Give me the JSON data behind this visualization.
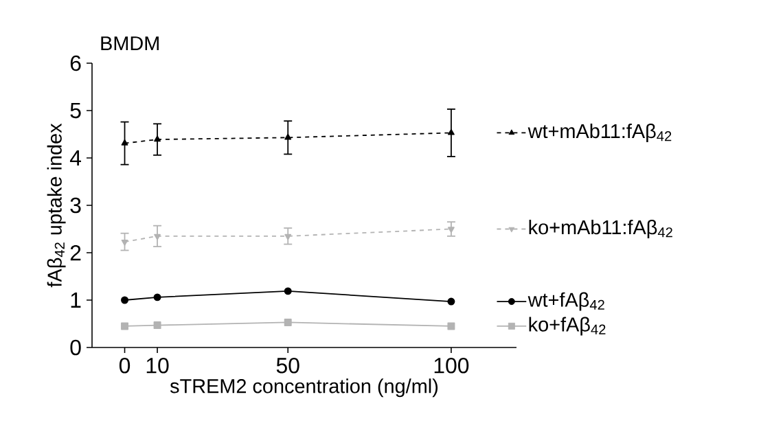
{
  "chart_data": {
    "type": "line",
    "title": "BMDM",
    "xlabel": "sTREM2 concentration (ng/ml)",
    "ylabel": "fAβ$_{42}$ uptake index",
    "x": [
      0,
      10,
      50,
      100
    ],
    "xlim": [
      -10,
      120
    ],
    "xticks": [
      0,
      10,
      50,
      100
    ],
    "ylim": [
      0,
      6
    ],
    "yticks": [
      0,
      1,
      2,
      3,
      4,
      5,
      6
    ],
    "legend": "right",
    "series": [
      {
        "name": "wt+mAb11:fAβ$_{42}$",
        "color": "#000000",
        "marker": "triangle",
        "line_style": "dashed",
        "values": [
          4.31,
          4.39,
          4.43,
          4.53
        ],
        "errors": [
          0.45,
          0.33,
          0.35,
          0.5
        ]
      },
      {
        "name": "ko+mAb11:fAβ$_{42}$",
        "color": "#b3b3b3",
        "marker": "triangle-down",
        "line_style": "dashed",
        "values": [
          2.23,
          2.35,
          2.35,
          2.5
        ],
        "errors": [
          0.18,
          0.22,
          0.17,
          0.15
        ]
      },
      {
        "name": "wt+fAβ$_{42}$",
        "color": "#000000",
        "marker": "circle",
        "line_style": "solid",
        "values": [
          1.0,
          1.06,
          1.19,
          0.97
        ]
      },
      {
        "name": "ko+fAβ$_{42}$",
        "color": "#b3b3b3",
        "marker": "square",
        "line_style": "solid",
        "values": [
          0.45,
          0.47,
          0.53,
          0.45
        ]
      }
    ]
  }
}
